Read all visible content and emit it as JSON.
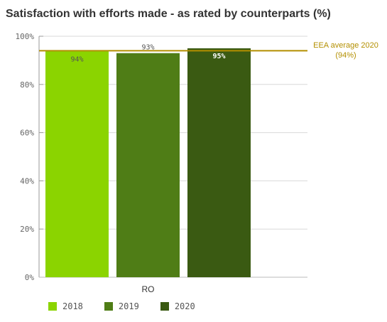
{
  "title": "Satisfaction with efforts made - as rated by counterparts (%)",
  "chart_data": {
    "type": "bar",
    "categories": [
      "RO"
    ],
    "series": [
      {
        "name": "2018",
        "values": [
          94
        ],
        "label": "94%",
        "color": "#8bd400",
        "label_color": "#555555",
        "label_bold": false
      },
      {
        "name": "2019",
        "values": [
          93
        ],
        "label": "93%",
        "color": "#4f7d16",
        "label_color": "#555555",
        "label_bold": false
      },
      {
        "name": "2020",
        "values": [
          95
        ],
        "label": "95%",
        "color": "#3a5a12",
        "label_color": "#ffffff",
        "label_bold": true
      }
    ],
    "ylim": [
      0,
      100
    ],
    "yticks": [
      0,
      20,
      40,
      60,
      80,
      100
    ],
    "ytick_labels": [
      "0%",
      "20%",
      "40%",
      "60%",
      "80%",
      "100%"
    ],
    "grid": true,
    "legend_position": "bottom-left",
    "reference_line": {
      "value": 94,
      "label_line1": "EEA average 2020",
      "label_line2": "(94%)",
      "color": "#b38f00"
    }
  }
}
